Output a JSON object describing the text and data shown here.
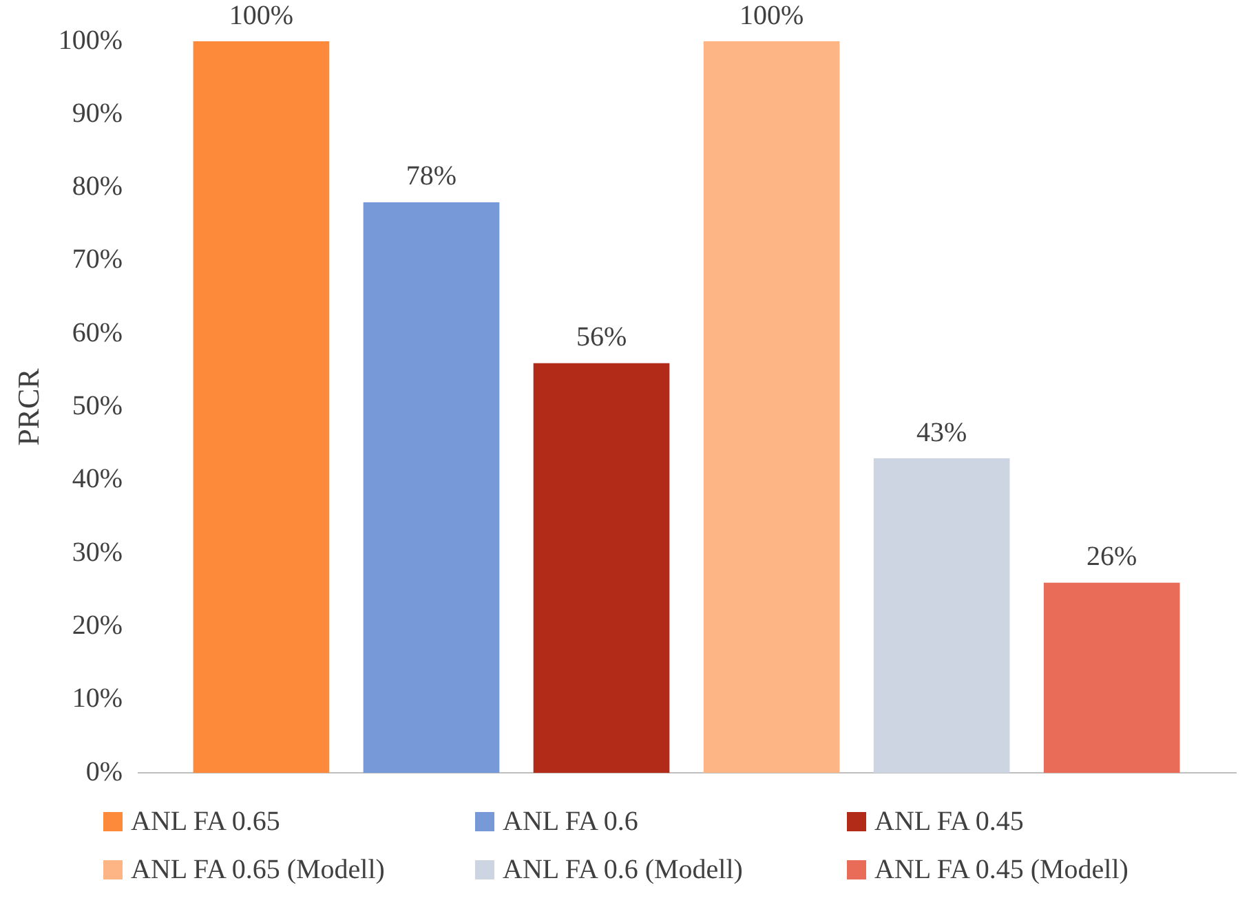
{
  "chart_data": {
    "type": "bar",
    "ylabel": "PRCR",
    "categories": [
      null
    ],
    "series": [
      {
        "name": "ANL FA 0.65",
        "color": "#fd8a3a",
        "values": [
          100
        ],
        "value_labels": [
          "100%"
        ]
      },
      {
        "name": "ANL FA 0.6",
        "color": "#7799d8",
        "values": [
          78
        ],
        "value_labels": [
          "78%"
        ]
      },
      {
        "name": "ANL FA 0.45",
        "color": "#b22b18",
        "values": [
          56
        ],
        "value_labels": [
          "56%"
        ]
      },
      {
        "name": "ANL FA 0.65 (Modell)",
        "color": "#feb585",
        "values": [
          100
        ],
        "value_labels": [
          "100%"
        ]
      },
      {
        "name": "ANL FA 0.6 (Modell)",
        "color": "#cdd5e3",
        "values": [
          43
        ],
        "value_labels": [
          "43%"
        ]
      },
      {
        "name": "ANL FA 0.45 (Modell)",
        "color": "#e96c58",
        "values": [
          26
        ],
        "value_labels": [
          "26%"
        ]
      }
    ],
    "ylim": [
      0,
      100
    ],
    "yticks": [
      {
        "value": 0,
        "label": "0%"
      },
      {
        "value": 10,
        "label": "10%"
      },
      {
        "value": 20,
        "label": "20%"
      },
      {
        "value": 30,
        "label": "30%"
      },
      {
        "value": 40,
        "label": "40%"
      },
      {
        "value": 50,
        "label": "50%"
      },
      {
        "value": 60,
        "label": "60%"
      },
      {
        "value": 70,
        "label": "70%"
      },
      {
        "value": 80,
        "label": "80%"
      },
      {
        "value": 90,
        "label": "90%"
      },
      {
        "value": 100,
        "label": "100%"
      }
    ],
    "grid": false,
    "legend": "bottom"
  }
}
